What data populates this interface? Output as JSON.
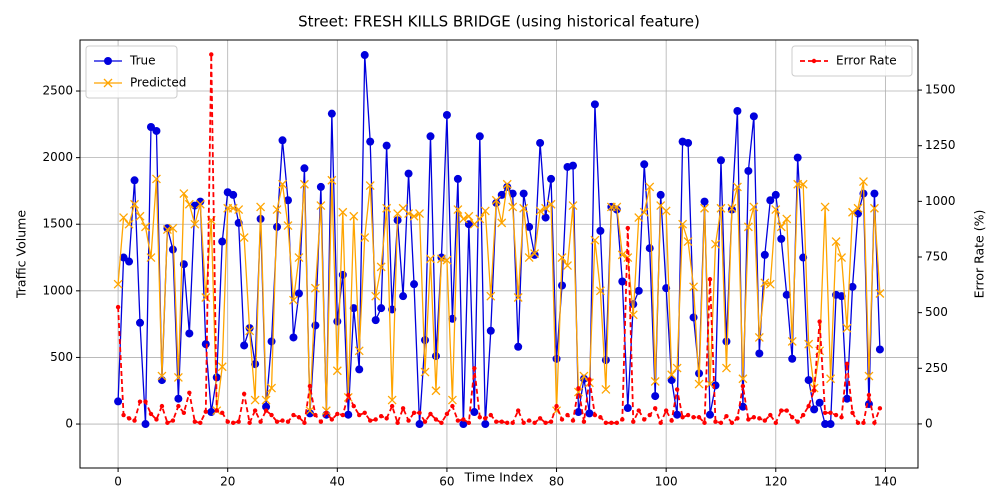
{
  "chart_data": {
    "type": "line",
    "title": "Street: FRESH KILLS BRIDGE (using historical feature)",
    "xlabel": "Time Index",
    "ylabel": "Traffic Volume",
    "y2label": "Error Rate (%)",
    "x": [
      0,
      1,
      2,
      3,
      4,
      5,
      6,
      7,
      8,
      9,
      10,
      11,
      12,
      13,
      14,
      15,
      16,
      17,
      18,
      19,
      20,
      21,
      22,
      23,
      24,
      25,
      26,
      27,
      28,
      29,
      30,
      31,
      32,
      33,
      34,
      35,
      36,
      37,
      38,
      39,
      40,
      41,
      42,
      43,
      44,
      45,
      46,
      47,
      48,
      49,
      50,
      51,
      52,
      53,
      54,
      55,
      56,
      57,
      58,
      59,
      60,
      61,
      62,
      63,
      64,
      65,
      66,
      67,
      68,
      69,
      70,
      71,
      72,
      73,
      74,
      75,
      76,
      77,
      78,
      79,
      80,
      81,
      82,
      83,
      84,
      85,
      86,
      87,
      88,
      89,
      90,
      91,
      92,
      93,
      94,
      95,
      96,
      97,
      98,
      99,
      100,
      101,
      102,
      103,
      104,
      105,
      106,
      107,
      108,
      109,
      110,
      111,
      112,
      113,
      114,
      115,
      116,
      117,
      118,
      119,
      120,
      121,
      122,
      123,
      124,
      125,
      126,
      127,
      128,
      129,
      130,
      131,
      132,
      133,
      134,
      135,
      136,
      137,
      138,
      139
    ],
    "xlim": [
      -6.95,
      145.95
    ],
    "xticks": [
      0,
      20,
      40,
      60,
      80,
      100,
      120,
      140
    ],
    "ylim": [
      -330,
      2883
    ],
    "yticks": [
      0,
      500,
      1000,
      1500,
      2000,
      2500
    ],
    "y2lim": [
      -198,
      1725
    ],
    "y2ticks": [
      0,
      250,
      500,
      750,
      1000,
      1250,
      1500
    ],
    "grid": true,
    "legend": "upper left",
    "legend2": "upper right",
    "series": [
      {
        "name": "True",
        "color": "#0000dd",
        "marker": "circle",
        "linestyle": "solid",
        "values": [
          170,
          1250,
          1220,
          1830,
          760,
          0,
          2230,
          2200,
          330,
          1470,
          1310,
          190,
          1200,
          680,
          1640,
          1670,
          600,
          90,
          350,
          1370,
          1740,
          1720,
          1510,
          590,
          720,
          450,
          1540,
          130,
          620,
          1480,
          2130,
          1680,
          650,
          980,
          1920,
          80,
          740,
          1780,
          70,
          2330,
          770,
          1120,
          70,
          870,
          410,
          2770,
          2120,
          780,
          870,
          2090,
          860,
          1530,
          960,
          1880,
          1050,
          0,
          630,
          2160,
          510,
          1250,
          2320,
          790,
          1840,
          0,
          1500,
          90,
          2160,
          0,
          700,
          1660,
          1720,
          1780,
          1730,
          580,
          1730,
          1480,
          1270,
          2110,
          1550,
          1840,
          490,
          1040,
          1930,
          1940,
          90,
          340,
          80,
          2400,
          1450,
          480,
          1630,
          1610,
          1070,
          120,
          900,
          1000,
          1950,
          1320,
          210,
          1720,
          1020,
          330,
          70,
          2120,
          2110,
          800,
          380,
          1670,
          70,
          290,
          1980,
          620,
          1610,
          2350,
          130,
          1900,
          2310,
          530,
          1270,
          1680,
          1720,
          1390,
          970,
          490,
          2000,
          1250,
          330,
          110,
          160,
          0,
          0,
          970,
          960,
          190,
          1030,
          1580,
          1730,
          150,
          1730,
          560
        ]
      },
      {
        "name": "Predicted",
        "color": "#ffa500",
        "marker": "x",
        "linestyle": "solid",
        "values": [
          1050,
          1550,
          1500,
          1650,
          1560,
          1480,
          1250,
          1840,
          360,
          1460,
          1470,
          350,
          1730,
          1650,
          1500,
          1650,
          950,
          1530,
          100,
          430,
          1620,
          1620,
          1610,
          1400,
          700,
          180,
          1630,
          180,
          270,
          1610,
          1800,
          1490,
          930,
          1250,
          1800,
          100,
          1020,
          1640,
          100,
          1830,
          400,
          1590,
          200,
          1560,
          550,
          1400,
          1790,
          960,
          1180,
          1620,
          180,
          1580,
          1620,
          1580,
          1560,
          1580,
          390,
          1240,
          250,
          1240,
          1230,
          180,
          1610,
          1540,
          1560,
          1500,
          1540,
          1600,
          960,
          1680,
          1510,
          1800,
          1630,
          950,
          1620,
          1250,
          1280,
          1600,
          1620,
          1650,
          100,
          1250,
          1190,
          1640,
          240,
          360,
          310,
          1380,
          1000,
          260,
          1630,
          1630,
          1270,
          1250,
          820,
          1550,
          1590,
          1780,
          320,
          1640,
          1600,
          370,
          420,
          1500,
          1370,
          1030,
          300,
          1620,
          300,
          1350,
          1620,
          420,
          1620,
          1780,
          340,
          1480,
          1630,
          650,
          1060,
          1050,
          1610,
          1480,
          1540,
          620,
          1800,
          1800,
          600,
          270,
          550,
          1630,
          340,
          1370,
          1250,
          720,
          1590,
          1620,
          1820,
          360,
          1620,
          980
        ]
      },
      {
        "name": "Error Rate",
        "color": "#ff0000",
        "marker": "dot",
        "linestyle": "dashed",
        "axis": "y2",
        "values": [
          525,
          40,
          25,
          15,
          100,
          100,
          45,
          20,
          80,
          5,
          15,
          80,
          50,
          140,
          10,
          5,
          55,
          1660,
          60,
          50,
          10,
          5,
          10,
          135,
          5,
          60,
          10,
          60,
          40,
          10,
          15,
          10,
          40,
          30,
          5,
          170,
          40,
          10,
          50,
          20,
          45,
          40,
          130,
          80,
          40,
          50,
          15,
          20,
          35,
          25,
          80,
          5,
          70,
          15,
          50,
          50,
          10,
          45,
          20,
          5,
          45,
          80,
          15,
          20,
          5,
          250,
          30,
          25,
          40,
          10,
          10,
          5,
          5,
          60,
          5,
          15,
          5,
          25,
          5,
          10,
          80,
          20,
          40,
          15,
          160,
          10,
          200,
          40,
          30,
          5,
          5,
          5,
          20,
          880,
          10,
          60,
          20,
          40,
          70,
          5,
          60,
          15,
          155,
          30,
          40,
          30,
          30,
          5,
          650,
          10,
          5,
          35,
          5,
          25,
          170,
          20,
          30,
          25,
          15,
          40,
          5,
          60,
          60,
          30,
          10,
          40,
          80,
          150,
          460,
          50,
          50,
          40,
          30,
          270,
          50,
          5,
          5,
          130,
          5,
          70
        ]
      }
    ]
  }
}
